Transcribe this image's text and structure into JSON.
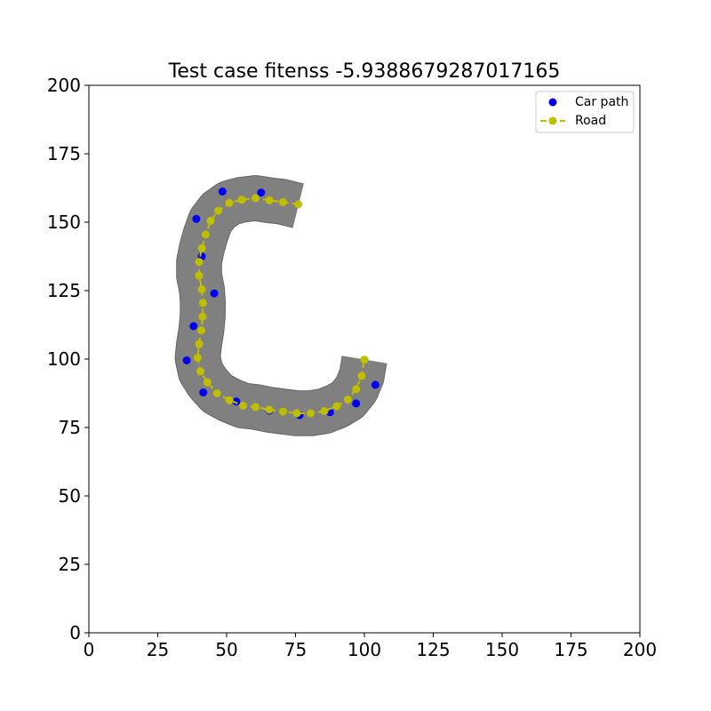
{
  "chart_data": {
    "type": "scatter",
    "title": "Test case fitenss -5.9388679287017165",
    "xlabel": "",
    "ylabel": "",
    "xlim": [
      0,
      200
    ],
    "ylim": [
      0,
      200
    ],
    "x_ticks": [
      0,
      25,
      50,
      75,
      100,
      125,
      150,
      175,
      200
    ],
    "y_ticks": [
      0,
      25,
      50,
      75,
      100,
      125,
      150,
      175,
      200
    ],
    "grid": false,
    "legend_position": "top-right",
    "legend": [
      {
        "label": "Car path",
        "marker": "circle",
        "color": "#0000ee"
      },
      {
        "label": "Road",
        "marker": "circle-dashed-line",
        "color": "#bfbf00"
      }
    ],
    "road_band": {
      "color": "#808080",
      "width": 8,
      "centerline": [
        [
          76,
          156
        ],
        [
          70,
          157.5
        ],
        [
          65.5,
          158
        ],
        [
          60.5,
          158.8
        ],
        [
          55.5,
          158.2
        ],
        [
          51,
          157
        ],
        [
          47,
          154.2
        ],
        [
          44.2,
          150.5
        ],
        [
          42.4,
          145.5
        ],
        [
          41,
          140.5
        ],
        [
          40,
          135.5
        ],
        [
          40,
          130.5
        ],
        [
          41,
          125.5
        ],
        [
          41.4,
          120.5
        ],
        [
          41.3,
          115.5
        ],
        [
          40.8,
          110.5
        ],
        [
          40,
          105.5
        ],
        [
          39.5,
          100.5
        ],
        [
          40.5,
          95.5
        ],
        [
          43,
          91.5
        ],
        [
          46.5,
          87.5
        ],
        [
          51,
          85
        ],
        [
          56,
          83
        ],
        [
          60.5,
          82.5
        ],
        [
          65.5,
          81.5
        ],
        [
          70.5,
          80.8
        ],
        [
          75.5,
          80.2
        ],
        [
          80.5,
          80.2
        ],
        [
          85.5,
          81
        ],
        [
          90,
          82.8
        ],
        [
          94,
          85.2
        ],
        [
          97,
          89
        ],
        [
          99,
          93.8
        ],
        [
          100,
          99.8
        ]
      ]
    },
    "series": [
      {
        "name": "Car path",
        "color": "#0000ee",
        "style": "scatter",
        "x": [
          35.5,
          38,
          39,
          41,
          41.5,
          45.5,
          48.5,
          53.5,
          62.5,
          65.5,
          76.5,
          87.5,
          97,
          104
        ],
        "y": [
          99.5,
          112,
          151.2,
          137.5,
          87.8,
          124,
          161.2,
          84.5,
          160.8,
          81.2,
          79.5,
          80.6,
          83.8,
          90.6
        ]
      },
      {
        "name": "Road",
        "color": "#bfbf00",
        "style": "line-dashed-markers",
        "x": [
          76,
          70.5,
          65.5,
          60.5,
          55.5,
          51,
          47,
          44.2,
          42.4,
          41,
          40,
          40,
          41,
          41.4,
          41.3,
          40.8,
          40,
          39.5,
          40.5,
          43,
          46.5,
          51,
          56,
          60.5,
          65.5,
          70.5,
          75.5,
          80.5,
          85.5,
          90,
          94,
          97,
          99,
          100
        ],
        "y": [
          156.5,
          157.3,
          158,
          158.8,
          158.2,
          157,
          154.2,
          150.5,
          145.5,
          140.5,
          135.5,
          130.5,
          125.5,
          120.5,
          115.5,
          110.5,
          105.5,
          100.5,
          95.5,
          91.5,
          87.5,
          85,
          83,
          82.5,
          81.5,
          80.8,
          80.2,
          80.2,
          81,
          82.8,
          85.2,
          89,
          93.8,
          99.8
        ]
      }
    ]
  }
}
